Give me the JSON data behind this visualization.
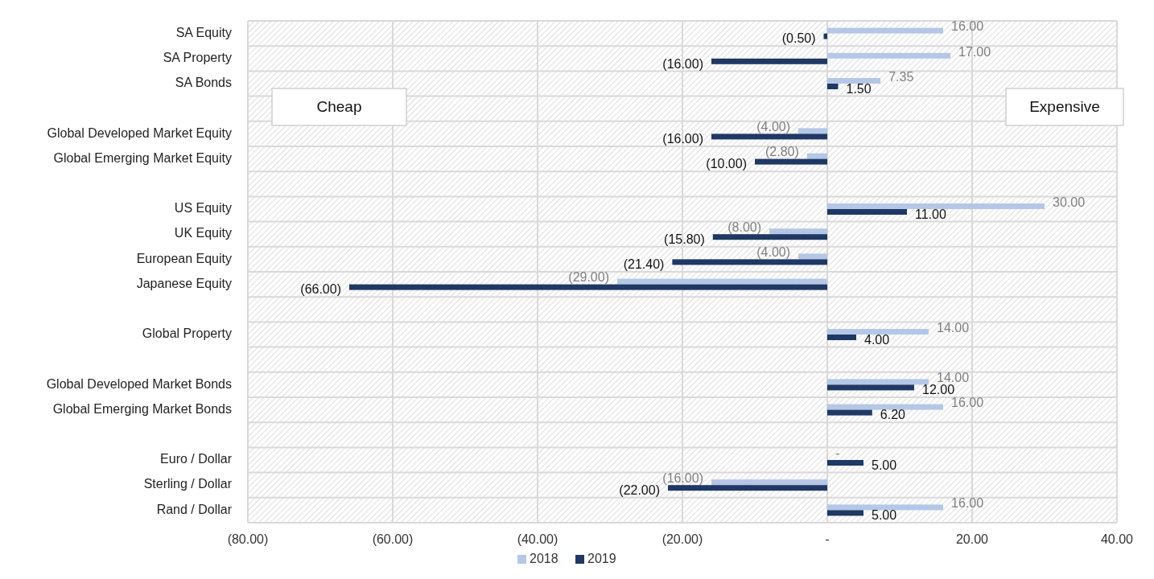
{
  "chart_data": {
    "type": "bar",
    "orientation": "horizontal",
    "categories": [
      "SA Equity",
      "SA Property",
      "SA Bonds",
      null,
      "Global Developed Market Equity",
      "Global Emerging Market Equity",
      null,
      "US Equity",
      "UK Equity",
      "European Equity",
      "Japanese Equity",
      null,
      "Global Property",
      null,
      "Global Developed Market Bonds",
      "Global Emerging Market Bonds",
      null,
      "Euro / Dollar",
      "Sterling / Dollar",
      "Rand / Dollar"
    ],
    "series": [
      {
        "name": "2018",
        "color": "#b4c7e7",
        "values": [
          16,
          17,
          7.35,
          null,
          -4,
          -2.8,
          null,
          30,
          -8,
          -4,
          -29,
          null,
          14,
          null,
          14,
          16,
          null,
          0,
          -16,
          16
        ],
        "value_labels": [
          "16.00",
          "17.00",
          "7.35",
          null,
          "(4.00)",
          "(2.80)",
          null,
          "30.00",
          "(8.00)",
          "(4.00)",
          "(29.00)",
          null,
          "14.00",
          null,
          "14.00",
          "16.00",
          null,
          "-",
          "(16.00)",
          "16.00"
        ]
      },
      {
        "name": "2019",
        "color": "#1f3864",
        "values": [
          -0.5,
          -16,
          1.5,
          null,
          -16,
          -10,
          null,
          11,
          -15.8,
          -21.4,
          -66,
          null,
          4,
          null,
          12,
          6.2,
          null,
          5,
          -22,
          5
        ],
        "value_labels": [
          "(0.50)",
          "(16.00)",
          "1.50",
          null,
          "(16.00)",
          "(10.00)",
          null,
          "11.00",
          "(15.80)",
          "(21.40)",
          "(66.00)",
          null,
          "4.00",
          null,
          "12.00",
          "6.20",
          null,
          "5.00",
          "(22.00)",
          "5.00"
        ]
      }
    ],
    "xlim": [
      -80,
      40
    ],
    "xticks": [
      {
        "value": -80,
        "label": "(80.00)"
      },
      {
        "value": -60,
        "label": "(60.00)"
      },
      {
        "value": -40,
        "label": "(40.00)"
      },
      {
        "value": -20,
        "label": "(20.00)"
      },
      {
        "value": 0,
        "label": "-"
      },
      {
        "value": 20,
        "label": "20.00"
      },
      {
        "value": 40,
        "label": "40.00"
      }
    ],
    "annotations": [
      "Cheap",
      "Expensive"
    ],
    "grid": true,
    "legend": "bottom"
  }
}
